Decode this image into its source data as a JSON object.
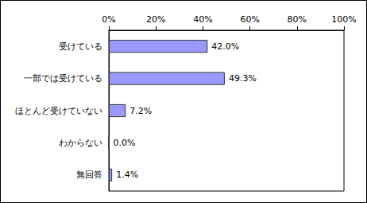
{
  "chart_data": {
    "type": "bar",
    "orientation": "horizontal",
    "categories": [
      "受けている",
      "一部では受けている",
      "ほとんど受けていない",
      "わからない",
      "無回答"
    ],
    "values": [
      42.0,
      49.3,
      7.2,
      0.0,
      1.4
    ],
    "value_labels": [
      "42.0%",
      "49.3%",
      "7.2%",
      "0.0%",
      "1.4%"
    ],
    "color": "#9999ff",
    "xlim": [
      0,
      100
    ],
    "xticks": [
      {
        "value": 0,
        "label": "0%"
      },
      {
        "value": 20,
        "label": "20%"
      },
      {
        "value": 40,
        "label": "40%"
      },
      {
        "value": 60,
        "label": "60%"
      },
      {
        "value": 80,
        "label": "80%"
      },
      {
        "value": 100,
        "label": "100%"
      }
    ],
    "grid": false,
    "data_labels": true
  }
}
